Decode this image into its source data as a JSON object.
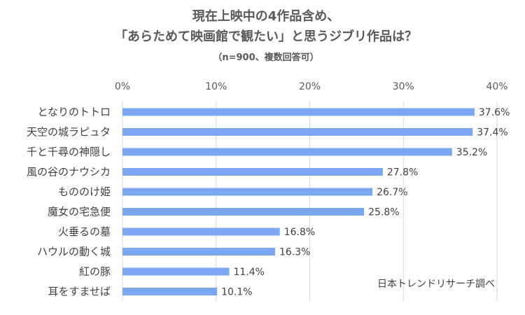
{
  "chart_data": {
    "type": "bar",
    "orientation": "horizontal",
    "title_line1": "現在上映中の4作品含め、",
    "title_line2": "「あらためて映画館で観たい」と思うジブリ作品は？",
    "subtitle": "（n=900、複数回答可）",
    "source": "日本トレンドリサーチ調べ",
    "categories": [
      "となりのトトロ",
      "天空の城ラピュタ",
      "千と千尋の神隠し",
      "風の谷のナウシカ",
      "もののけ姫",
      "魔女の宅急便",
      "火垂るの墓",
      "ハウルの動く城",
      "紅の豚",
      "耳をすませば"
    ],
    "values": [
      37.6,
      37.4,
      35.2,
      27.8,
      26.7,
      25.8,
      16.8,
      16.3,
      11.4,
      10.1
    ],
    "value_labels": [
      "37.6%",
      "37.4%",
      "35.2%",
      "27.8%",
      "26.7%",
      "25.8%",
      "16.8%",
      "16.3%",
      "11.4%",
      "10.1%"
    ],
    "xlim": [
      0,
      40
    ],
    "xticks": [
      0,
      10,
      20,
      30,
      40
    ],
    "xtick_labels": [
      "0%",
      "10%",
      "20%",
      "30%",
      "40%"
    ],
    "axis_position": "top",
    "grid": true,
    "bar_color": "#7ba6f0",
    "grid_color": "#d9d9d9"
  }
}
